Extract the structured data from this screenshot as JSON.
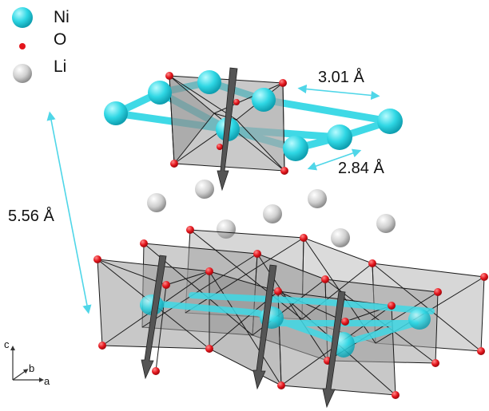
{
  "legend": {
    "items": [
      {
        "label": "Ni",
        "color": "#2fd7e4"
      },
      {
        "label": "O",
        "color": "#e3141b"
      },
      {
        "label": "Li",
        "color": "#c7c7c7"
      }
    ]
  },
  "measurements": {
    "ni_ni_in_plane": "3.01 Å",
    "ni_o_distance": "2.84 Å",
    "interlayer_spacing": "5.56 Å"
  },
  "axes": {
    "c": "c",
    "b": "b",
    "a": "a"
  },
  "colors": {
    "ni": "#2fd7e4",
    "ni_bond": "#3fd9e6",
    "o": "#e3141b",
    "li": "#c9c9c9",
    "octa_fill": "#9c9c9c",
    "edge": "#1a1a1a",
    "arrow": "#555555",
    "measure": "#4fd6e8"
  }
}
